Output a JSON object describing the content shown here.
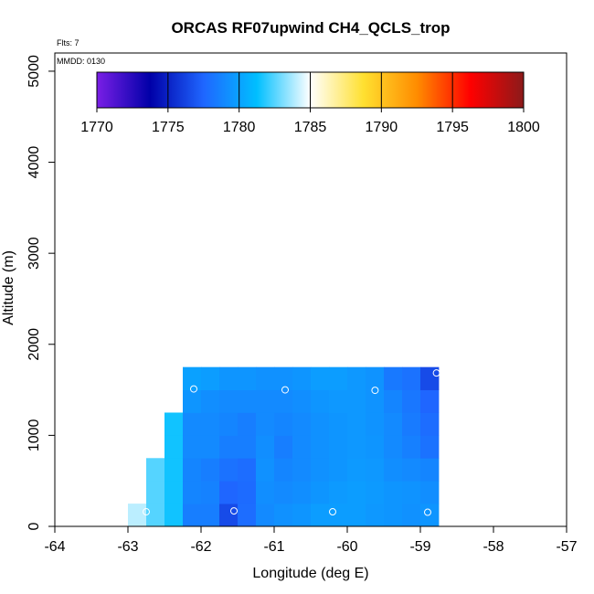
{
  "chart_data": {
    "type": "heatmap",
    "title": "ORCAS RF07upwind CH4_QCLS_trop",
    "annotations": {
      "flts": "Flts: 7",
      "mmdd": "MMDD: 0130"
    },
    "xlabel": "Longitude (deg E)",
    "ylabel": "Altitude (m)",
    "xlim": [
      -64,
      -57
    ],
    "ylim": [
      0,
      5200
    ],
    "x_ticks": [
      "-64",
      "-63",
      "-62",
      "-61",
      "-60",
      "-59",
      "-58",
      "-57"
    ],
    "y_ticks": [
      "0",
      "1000",
      "2000",
      "3000",
      "4000",
      "5000"
    ],
    "colorbar": {
      "range": [
        1770,
        1800
      ],
      "tick_labels": [
        "1770",
        "1775",
        "1780",
        "1785",
        "1790",
        "1795",
        "1800"
      ],
      "colors": [
        "#7a1fe6",
        "#0000a8",
        "#1f66ff",
        "#00bfff",
        "#ffffff",
        "#ffe030",
        "#ff8c00",
        "#ff0000",
        "#8b1a1a"
      ]
    },
    "cell_size": {
      "lon": 0.25,
      "alt": 250
    },
    "cells": [
      [
        -62.875,
        125,
        1784.0
      ],
      [
        -62.625,
        125,
        1782.5
      ],
      [
        -62.625,
        375,
        1782.5
      ],
      [
        -62.625,
        625,
        1782.5
      ],
      [
        -62.375,
        125,
        1781.5
      ],
      [
        -62.375,
        375,
        1781.5
      ],
      [
        -62.375,
        625,
        1781.5
      ],
      [
        -62.375,
        875,
        1781.5
      ],
      [
        -62.375,
        1125,
        1781.5
      ],
      [
        -62.125,
        125,
        1778.5
      ],
      [
        -62.125,
        375,
        1778.8
      ],
      [
        -62.125,
        625,
        1778.8
      ],
      [
        -62.125,
        875,
        1779.0
      ],
      [
        -62.125,
        1125,
        1779.0
      ],
      [
        -62.125,
        1375,
        1779.5
      ],
      [
        -62.125,
        1625,
        1780.0
      ],
      [
        -61.875,
        125,
        1778.5
      ],
      [
        -61.875,
        375,
        1778.7
      ],
      [
        -61.875,
        625,
        1778.5
      ],
      [
        -61.875,
        875,
        1779.0
      ],
      [
        -61.875,
        1125,
        1779.0
      ],
      [
        -61.875,
        1375,
        1779.2
      ],
      [
        -61.875,
        1625,
        1779.8
      ],
      [
        -61.625,
        125,
        1776.5
      ],
      [
        -61.625,
        375,
        1777.5
      ],
      [
        -61.625,
        625,
        1778.0
      ],
      [
        -61.625,
        875,
        1778.5
      ],
      [
        -61.625,
        1125,
        1778.8
      ],
      [
        -61.625,
        1375,
        1779.0
      ],
      [
        -61.625,
        1625,
        1779.5
      ],
      [
        -61.375,
        125,
        1777.8
      ],
      [
        -61.375,
        375,
        1777.7
      ],
      [
        -61.375,
        625,
        1777.8
      ],
      [
        -61.375,
        875,
        1778.5
      ],
      [
        -61.375,
        1125,
        1778.5
      ],
      [
        -61.375,
        1375,
        1779.0
      ],
      [
        -61.375,
        1625,
        1779.5
      ],
      [
        -61.125,
        125,
        1779.0
      ],
      [
        -61.125,
        375,
        1779.2
      ],
      [
        -61.125,
        625,
        1779.3
      ],
      [
        -61.125,
        875,
        1779.2
      ],
      [
        -61.125,
        1125,
        1779.0
      ],
      [
        -61.125,
        1375,
        1779.0
      ],
      [
        -61.125,
        1625,
        1779.3
      ],
      [
        -60.875,
        125,
        1779.3
      ],
      [
        -60.875,
        375,
        1779.0
      ],
      [
        -60.875,
        625,
        1778.8
      ],
      [
        -60.875,
        875,
        1778.5
      ],
      [
        -60.875,
        1125,
        1778.8
      ],
      [
        -60.875,
        1375,
        1779.0
      ],
      [
        -60.875,
        1625,
        1779.3
      ],
      [
        -60.625,
        125,
        1779.5
      ],
      [
        -60.625,
        375,
        1779.2
      ],
      [
        -60.625,
        625,
        1779.0
      ],
      [
        -60.625,
        875,
        1779.0
      ],
      [
        -60.625,
        1125,
        1779.0
      ],
      [
        -60.625,
        1375,
        1779.2
      ],
      [
        -60.625,
        1625,
        1779.5
      ],
      [
        -60.375,
        125,
        1779.8
      ],
      [
        -60.375,
        375,
        1779.5
      ],
      [
        -60.375,
        625,
        1779.3
      ],
      [
        -60.375,
        875,
        1779.3
      ],
      [
        -60.375,
        1125,
        1779.3
      ],
      [
        -60.375,
        1375,
        1779.5
      ],
      [
        -60.375,
        1625,
        1779.8
      ],
      [
        -60.125,
        125,
        1779.8
      ],
      [
        -60.125,
        375,
        1779.7
      ],
      [
        -60.125,
        625,
        1779.5
      ],
      [
        -60.125,
        875,
        1779.5
      ],
      [
        -60.125,
        1125,
        1779.5
      ],
      [
        -60.125,
        1375,
        1779.6
      ],
      [
        -60.125,
        1625,
        1779.8
      ],
      [
        -59.875,
        125,
        1779.8
      ],
      [
        -59.875,
        375,
        1779.8
      ],
      [
        -59.875,
        625,
        1779.7
      ],
      [
        -59.875,
        875,
        1779.6
      ],
      [
        -59.875,
        1125,
        1779.6
      ],
      [
        -59.875,
        1375,
        1779.6
      ],
      [
        -59.875,
        1625,
        1779.6
      ],
      [
        -59.625,
        125,
        1779.6
      ],
      [
        -59.625,
        375,
        1779.7
      ],
      [
        -59.625,
        625,
        1779.6
      ],
      [
        -59.625,
        875,
        1779.5
      ],
      [
        -59.625,
        1125,
        1779.4
      ],
      [
        -59.625,
        1375,
        1779.4
      ],
      [
        -59.625,
        1625,
        1779.4
      ],
      [
        -59.375,
        125,
        1779.5
      ],
      [
        -59.375,
        375,
        1779.5
      ],
      [
        -59.375,
        625,
        1779.2
      ],
      [
        -59.375,
        875,
        1779.0
      ],
      [
        -59.375,
        1125,
        1779.0
      ],
      [
        -59.375,
        1375,
        1778.8
      ],
      [
        -59.375,
        1625,
        1778.3
      ],
      [
        -59.125,
        125,
        1779.3
      ],
      [
        -59.125,
        375,
        1779.4
      ],
      [
        -59.125,
        625,
        1779.0
      ],
      [
        -59.125,
        875,
        1778.6
      ],
      [
        -59.125,
        1125,
        1778.4
      ],
      [
        -59.125,
        1375,
        1778.2
      ],
      [
        -59.125,
        1625,
        1778.0
      ],
      [
        -58.875,
        125,
        1779.5
      ],
      [
        -58.875,
        375,
        1779.2
      ],
      [
        -58.875,
        625,
        1778.8
      ],
      [
        -58.875,
        875,
        1778.0
      ],
      [
        -58.875,
        1125,
        1777.8
      ],
      [
        -58.875,
        1375,
        1777.5
      ],
      [
        -58.875,
        1625,
        1776.5
      ]
    ],
    "sample_points": [
      [
        -62.75,
        160
      ],
      [
        -62.1,
        1510
      ],
      [
        -61.55,
        170
      ],
      [
        -60.85,
        1500
      ],
      [
        -60.2,
        160
      ],
      [
        -59.62,
        1495
      ],
      [
        -58.9,
        155
      ],
      [
        -58.78,
        1685
      ]
    ]
  }
}
